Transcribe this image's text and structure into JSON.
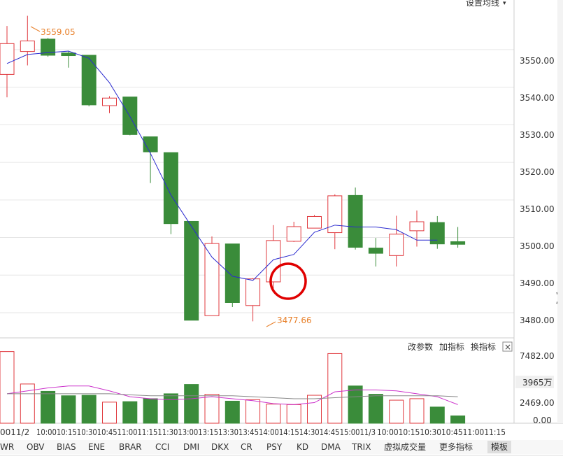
{
  "header": {
    "ma_settings_label": "设置均线"
  },
  "colors": {
    "up": "#e0393e",
    "down": "#3a8c3a",
    "ma": "#2b2bcf",
    "vol_ma1": "#cc33cc",
    "vol_ma2": "#888888",
    "grid": "#e6e6e6",
    "annotation": "#e8802a",
    "highlight": "#e00000"
  },
  "indicator_links": {
    "params": "改参数",
    "add": "加指标",
    "swap": "换指标",
    "close_glyph": "×"
  },
  "price_axis_labels": [
    "3550.00",
    "3540.00",
    "3530.00",
    "3520.00",
    "3510.00",
    "3500.00",
    "3490.00",
    "3480.00"
  ],
  "volume_axis_labels": [
    "7482.00",
    "3965万",
    "2469.00",
    "0.00"
  ],
  "time_axis_labels": [
    "0011/2",
    "10:0010:1510:3010:4511:0011:1511:3013:0013:1513:3013:4514:0014:1514:3014:4515:0011/3",
    "10:0010:1510:3010:4511:0011:15"
  ],
  "tabs": [
    "WR",
    "OBV",
    "BIAS",
    "ENE",
    "BRAR",
    "CCI",
    "DMI",
    "DKX",
    "CR",
    "PSY",
    "KD",
    "DMA",
    "TRIX",
    "虚拟成交量",
    "更多指标",
    "模板"
  ],
  "chart_data": {
    "type": "candlestick",
    "price_ylim": [
      3473.3,
      3563.2
    ],
    "volume_ylim": [
      0,
      8700
    ],
    "high_annotation": "3559.05",
    "low_annotation": "3477.66",
    "candles": [
      {
        "o": 3543.4,
        "h": 3556.3,
        "l": 3537.3,
        "c": 3551.6
      },
      {
        "o": 3549.5,
        "h": 3559.0,
        "l": 3545.8,
        "c": 3552.3
      },
      {
        "o": 3552.8,
        "h": 3553.1,
        "l": 3548.1,
        "c": 3548.5
      },
      {
        "o": 3549.1,
        "h": 3549.6,
        "l": 3545.2,
        "c": 3548.4
      },
      {
        "o": 3548.5,
        "h": 3548.5,
        "l": 3534.9,
        "c": 3535.3
      },
      {
        "o": 3535.1,
        "h": 3537.6,
        "l": 3533.1,
        "c": 3537.1
      },
      {
        "o": 3537.4,
        "h": 3537.4,
        "l": 3527.2,
        "c": 3527.4
      },
      {
        "o": 3526.8,
        "h": 3526.8,
        "l": 3514.5,
        "c": 3522.8
      },
      {
        "o": 3522.6,
        "h": 3522.6,
        "l": 3500.9,
        "c": 3503.7
      },
      {
        "o": 3504.3,
        "h": 3504.3,
        "l": 3478.0,
        "c": 3478.0
      },
      {
        "o": 3479.2,
        "h": 3500.3,
        "l": 3479.2,
        "c": 3498.4
      },
      {
        "o": 3498.3,
        "h": 3498.3,
        "l": 3481.5,
        "c": 3482.7
      },
      {
        "o": 3481.9,
        "h": 3489.2,
        "l": 3477.7,
        "c": 3489.0
      },
      {
        "o": 3488.2,
        "h": 3503.3,
        "l": 3486.4,
        "c": 3499.2
      },
      {
        "o": 3499.0,
        "h": 3504.2,
        "l": 3498.8,
        "c": 3502.9
      },
      {
        "o": 3502.5,
        "h": 3506.0,
        "l": 3502.5,
        "c": 3505.6
      },
      {
        "o": 3501.3,
        "h": 3511.5,
        "l": 3496.9,
        "c": 3511.1
      },
      {
        "o": 3511.2,
        "h": 3513.3,
        "l": 3496.8,
        "c": 3497.4
      },
      {
        "o": 3497.2,
        "h": 3499.9,
        "l": 3492.3,
        "c": 3495.8
      },
      {
        "o": 3495.2,
        "h": 3505.8,
        "l": 3492.3,
        "c": 3500.9
      },
      {
        "o": 3501.8,
        "h": 3507.2,
        "l": 3497.6,
        "c": 3504.2
      },
      {
        "o": 3504.0,
        "h": 3505.7,
        "l": 3497.0,
        "c": 3498.3
      },
      {
        "o": 3498.9,
        "h": 3502.8,
        "l": 3497.3,
        "c": 3498.2
      }
    ],
    "ma": [
      3546.3,
      3548.7,
      3549.2,
      3549.6,
      3547.7,
      3541.2,
      3532.2,
      3522.4,
      3511.3,
      3503.0,
      3494.8,
      3489.7,
      3488.6,
      3494.1,
      3495.5,
      3501.4,
      3503.3,
      3502.8,
      3502.8,
      3502.1,
      3499.3,
      3499.3
    ],
    "volumes": [
      7300,
      4000,
      3250,
      2800,
      2850,
      2150,
      2200,
      2500,
      3000,
      3950,
      2950,
      2250,
      2400,
      1950,
      1900,
      2850,
      7100,
      3800,
      2950,
      2350,
      2500,
      1650,
      750
    ],
    "vol_ma1": [
      3000,
      3300,
      3600,
      3800,
      3800,
      3300,
      2700,
      2500,
      2400,
      2500,
      2700,
      2500,
      2300,
      2000,
      1900,
      2100,
      3200,
      3400,
      3400,
      3300,
      3000,
      2700,
      1900
    ],
    "vol_ma2": [
      3000,
      3000,
      3000,
      3000,
      3000,
      3000,
      2900,
      2800,
      2800,
      2800,
      2800,
      2800,
      2700,
      2600,
      2500,
      2500,
      2600,
      2700,
      2800,
      2800,
      2800,
      2800,
      2700
    ]
  }
}
